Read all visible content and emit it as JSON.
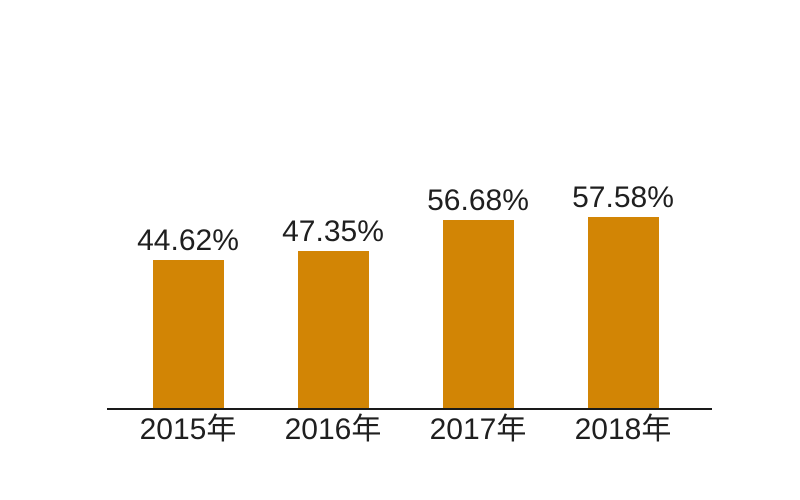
{
  "chart_data": {
    "type": "bar",
    "categories": [
      "2015年",
      "2016年",
      "2017年",
      "2018年"
    ],
    "values": [
      44.62,
      47.35,
      56.68,
      57.58
    ],
    "labels": [
      "44.62%",
      "47.35%",
      "56.68%",
      "57.58%"
    ],
    "title": "",
    "xlabel": "",
    "ylabel": "",
    "ylim": [
      0,
      60
    ],
    "grid": false,
    "legend": false,
    "colors": {
      "bar": "#d28505",
      "axis": "#1a1a1a",
      "text": "#1f1f1f",
      "background": "#ffffff"
    }
  }
}
